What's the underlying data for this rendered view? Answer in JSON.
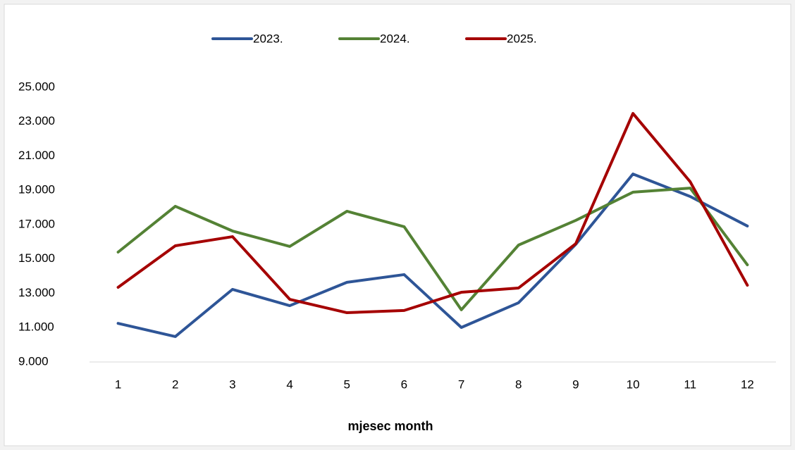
{
  "chart_data": {
    "type": "line",
    "xlabel": "mjesec month",
    "categories": [
      "1",
      "2",
      "3",
      "4",
      "5",
      "6",
      "7",
      "8",
      "9",
      "10",
      "11",
      "12"
    ],
    "series": [
      {
        "name": "2023.",
        "color": "#2e5597",
        "values": [
          11250,
          10480,
          13230,
          12280,
          13640,
          14090,
          11010,
          12450,
          15850,
          19950,
          18640,
          16920
        ]
      },
      {
        "name": "2024.",
        "color": "#548235",
        "values": [
          15400,
          18070,
          16630,
          15730,
          17780,
          16880,
          12040,
          15810,
          17250,
          18890,
          19130,
          14660
        ]
      },
      {
        "name": "2025.",
        "color": "#a50000",
        "values": [
          13350,
          15770,
          16300,
          12650,
          11870,
          12000,
          13060,
          13310,
          15890,
          23480,
          19500,
          13470
        ]
      }
    ],
    "ylim": [
      9000,
      25000
    ],
    "yticks": [
      {
        "value": 9000,
        "label": "9.000"
      },
      {
        "value": 11000,
        "label": "11.000"
      },
      {
        "value": 13000,
        "label": "13.000"
      },
      {
        "value": 15000,
        "label": "15.000"
      },
      {
        "value": 17000,
        "label": "17.000"
      },
      {
        "value": 19000,
        "label": "19.000"
      },
      {
        "value": 21000,
        "label": "21.000"
      },
      {
        "value": 23000,
        "label": "23.000"
      },
      {
        "value": 25000,
        "label": "25.000"
      }
    ],
    "grid": false,
    "legend": "top"
  }
}
